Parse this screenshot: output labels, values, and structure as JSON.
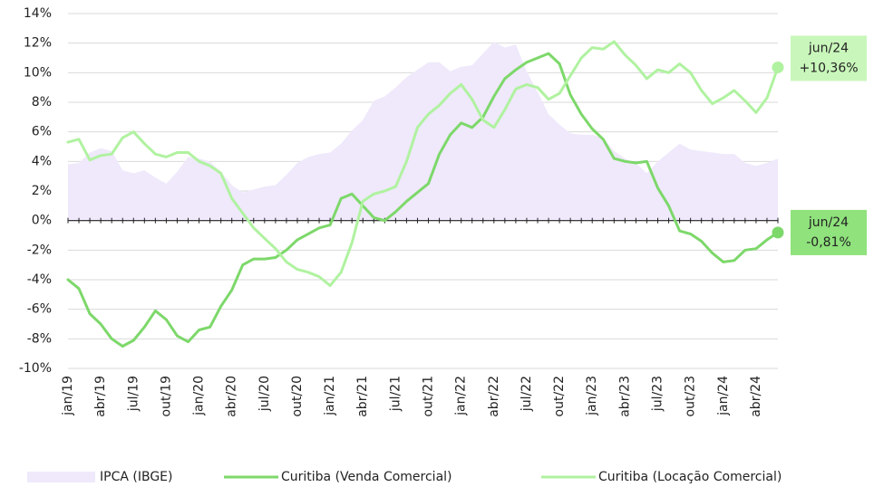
{
  "chart_data": {
    "type": "line",
    "categories": [
      "jan/19",
      null,
      null,
      "abr/19",
      null,
      null,
      "jul/19",
      null,
      null,
      "out/19",
      null,
      null,
      "jan/20",
      null,
      null,
      "abr/20",
      null,
      null,
      "jul/20",
      null,
      null,
      "out/20",
      null,
      null,
      "jan/21",
      null,
      null,
      "abr/21",
      null,
      null,
      "jul/21",
      null,
      null,
      "out/21",
      null,
      null,
      "jan/22",
      null,
      null,
      "abr/22",
      null,
      null,
      "jul/22",
      null,
      null,
      "out/22",
      null,
      null,
      "jan/23",
      null,
      null,
      "abr/23",
      null,
      null,
      "jul/23",
      null,
      null,
      "out/23",
      null,
      null,
      "jan/24",
      null,
      null,
      "abr/24",
      null,
      null
    ],
    "series": [
      {
        "name": "IPCA (IBGE)",
        "kind": "area",
        "color": "#efe9fb",
        "values": [
          3.8,
          3.9,
          4.6,
          4.9,
          4.7,
          3.4,
          3.2,
          3.4,
          2.9,
          2.5,
          3.3,
          4.3,
          4.2,
          4.0,
          3.3,
          2.4,
          1.9,
          2.1,
          2.3,
          2.4,
          3.1,
          3.9,
          4.3,
          4.5,
          4.6,
          5.2,
          6.1,
          6.8,
          8.1,
          8.4,
          9.0,
          9.7,
          10.2,
          10.7,
          10.7,
          10.1,
          10.4,
          10.5,
          11.3,
          12.1,
          11.7,
          11.9,
          10.1,
          8.7,
          7.2,
          6.5,
          5.9,
          5.8,
          5.8,
          5.6,
          4.7,
          4.2,
          3.9,
          3.2,
          4.0,
          4.6,
          5.2,
          4.8,
          4.7,
          4.6,
          4.5,
          4.5,
          3.9,
          3.7,
          3.9,
          4.2
        ]
      },
      {
        "name": "Curitiba (Venda Comercial)",
        "kind": "line",
        "color": "#7dd86a",
        "values": [
          -4.0,
          -4.6,
          -6.3,
          -7.0,
          -8.0,
          -8.5,
          -8.1,
          -7.2,
          -6.1,
          -6.7,
          -7.8,
          -8.2,
          -7.4,
          -7.2,
          -5.8,
          -4.7,
          -3.0,
          -2.6,
          -2.6,
          -2.5,
          -2.0,
          -1.3,
          -0.9,
          -0.5,
          -0.3,
          1.5,
          1.8,
          1.0,
          0.2,
          0.0,
          0.6,
          1.3,
          1.9,
          2.5,
          4.5,
          5.8,
          6.6,
          6.3,
          7.0,
          8.4,
          9.6,
          10.2,
          10.7,
          11.0,
          11.3,
          10.6,
          8.5,
          7.2,
          6.2,
          5.5,
          4.2,
          4.0,
          3.9,
          4.0,
          2.2,
          1.0,
          -0.7,
          -0.9,
          -1.4,
          -2.2,
          -2.8,
          -2.7,
          -2.0,
          -1.9,
          -1.3,
          -0.81
        ]
      },
      {
        "name": "Curitiba (Locação Comercial)",
        "kind": "line",
        "color": "#b0f2a0",
        "values": [
          5.3,
          5.5,
          4.1,
          4.4,
          4.5,
          5.6,
          6.0,
          5.2,
          4.5,
          4.3,
          4.6,
          4.6,
          4.0,
          3.7,
          3.2,
          1.5,
          0.5,
          -0.5,
          -1.2,
          -1.9,
          -2.8,
          -3.3,
          -3.5,
          -3.8,
          -4.4,
          -3.5,
          -1.5,
          1.3,
          1.8,
          2.0,
          2.3,
          4.0,
          6.3,
          7.2,
          7.8,
          8.6,
          9.2,
          8.2,
          6.8,
          6.3,
          7.5,
          8.9,
          9.2,
          9.0,
          8.2,
          8.6,
          9.8,
          11.0,
          11.7,
          11.6,
          12.1,
          11.2,
          10.5,
          9.6,
          10.2,
          10.0,
          10.6,
          10.0,
          8.8,
          7.9,
          8.3,
          8.8,
          8.1,
          7.3,
          8.3,
          10.36
        ]
      }
    ],
    "annotations": [
      {
        "lines": [
          "jun/24",
          "+10,36%"
        ],
        "color": "#c9f7bb"
      },
      {
        "lines": [
          "jun/24",
          "-0,81%"
        ],
        "color": "#8fe27c"
      }
    ],
    "ylim": [
      -10,
      14
    ],
    "yticks": [
      {
        "value": -10,
        "label": "-10%"
      },
      {
        "value": -8,
        "label": "-8%"
      },
      {
        "value": -6,
        "label": "-6%"
      },
      {
        "value": -4,
        "label": "-4%"
      },
      {
        "value": -2,
        "label": "-2%"
      },
      {
        "value": 0,
        "label": "0%"
      },
      {
        "value": 2,
        "label": "2%"
      },
      {
        "value": 4,
        "label": "4%"
      },
      {
        "value": 6,
        "label": "6%"
      },
      {
        "value": 8,
        "label": "8%"
      },
      {
        "value": 10,
        "label": "10%"
      },
      {
        "value": 12,
        "label": "12%"
      },
      {
        "value": 14,
        "label": "14%"
      }
    ],
    "grid": true,
    "legend": "bottom"
  }
}
